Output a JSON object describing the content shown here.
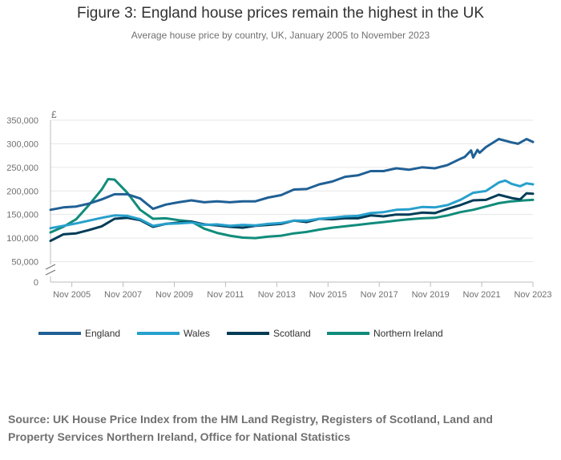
{
  "header": {
    "title": "Figure 3: England house prices remain the highest in the UK",
    "subtitle": "Average house price by country, UK, January 2005 to November 2023"
  },
  "footer": {
    "source": "Source: UK House Price Index from the HM Land Registry, Registers of Scotland, Land and Property Services Northern Ireland, Office for National Statistics"
  },
  "chart_data": {
    "type": "line",
    "y_unit_label": "£",
    "ylim": [
      0,
      350000
    ],
    "y_ticks": [
      {
        "value": 0,
        "label": "0"
      },
      {
        "value": 50000,
        "label": "50,000"
      },
      {
        "value": 100000,
        "label": "100,000"
      },
      {
        "value": 150000,
        "label": "150,000"
      },
      {
        "value": 200000,
        "label": "200,000"
      },
      {
        "value": 250000,
        "label": "250,000"
      },
      {
        "value": 300000,
        "label": "300,000"
      },
      {
        "value": 350000,
        "label": "350,000"
      }
    ],
    "y_axis_break": true,
    "xlim": [
      "2005-01",
      "2023-11"
    ],
    "x_ticks": [
      "Nov 2005",
      "Nov 2007",
      "Nov 2009",
      "Nov 2011",
      "Nov 2013",
      "Nov 2015",
      "Nov 2017",
      "Nov 2019",
      "Nov 2021",
      "Nov 2023"
    ],
    "grid": true,
    "legend_position": "bottom",
    "series": [
      {
        "name": "England",
        "color": "#206095",
        "points": [
          [
            "2005-01",
            160000
          ],
          [
            "2005-07",
            165000
          ],
          [
            "2006-01",
            167000
          ],
          [
            "2006-07",
            173000
          ],
          [
            "2007-01",
            182000
          ],
          [
            "2007-07",
            193000
          ],
          [
            "2008-01",
            193000
          ],
          [
            "2008-07",
            184000
          ],
          [
            "2009-01",
            162000
          ],
          [
            "2009-07",
            171000
          ],
          [
            "2010-01",
            176000
          ],
          [
            "2010-07",
            180000
          ],
          [
            "2011-01",
            176000
          ],
          [
            "2011-07",
            178000
          ],
          [
            "2012-01",
            176000
          ],
          [
            "2012-07",
            178000
          ],
          [
            "2013-01",
            178000
          ],
          [
            "2013-07",
            186000
          ],
          [
            "2014-01",
            191000
          ],
          [
            "2014-07",
            203000
          ],
          [
            "2015-01",
            204000
          ],
          [
            "2015-07",
            214000
          ],
          [
            "2016-01",
            220000
          ],
          [
            "2016-07",
            230000
          ],
          [
            "2017-01",
            233000
          ],
          [
            "2017-07",
            242000
          ],
          [
            "2018-01",
            242000
          ],
          [
            "2018-07",
            248000
          ],
          [
            "2019-01",
            245000
          ],
          [
            "2019-07",
            250000
          ],
          [
            "2020-01",
            248000
          ],
          [
            "2020-07",
            255000
          ],
          [
            "2021-01",
            268000
          ],
          [
            "2021-03",
            272000
          ],
          [
            "2021-06",
            286000
          ],
          [
            "2021-07",
            271000
          ],
          [
            "2021-09",
            287000
          ],
          [
            "2021-10",
            281000
          ],
          [
            "2022-01",
            293000
          ],
          [
            "2022-07",
            310000
          ],
          [
            "2023-01",
            303000
          ],
          [
            "2023-04",
            300000
          ],
          [
            "2023-08",
            310000
          ],
          [
            "2023-11",
            304000
          ]
        ]
      },
      {
        "name": "Wales",
        "color": "#27a0cc",
        "points": [
          [
            "2005-01",
            121000
          ],
          [
            "2005-07",
            126000
          ],
          [
            "2006-01",
            131000
          ],
          [
            "2006-07",
            137000
          ],
          [
            "2007-01",
            143000
          ],
          [
            "2007-07",
            148000
          ],
          [
            "2008-01",
            147000
          ],
          [
            "2008-07",
            140000
          ],
          [
            "2009-01",
            126000
          ],
          [
            "2009-07",
            130000
          ],
          [
            "2010-01",
            131000
          ],
          [
            "2010-07",
            133000
          ],
          [
            "2011-01",
            128000
          ],
          [
            "2011-07",
            129000
          ],
          [
            "2012-01",
            126000
          ],
          [
            "2012-07",
            128000
          ],
          [
            "2013-01",
            127000
          ],
          [
            "2013-07",
            130000
          ],
          [
            "2014-01",
            132000
          ],
          [
            "2014-07",
            137000
          ],
          [
            "2015-01",
            137000
          ],
          [
            "2015-07",
            141000
          ],
          [
            "2016-01",
            143000
          ],
          [
            "2016-07",
            146000
          ],
          [
            "2017-01",
            147000
          ],
          [
            "2017-07",
            153000
          ],
          [
            "2018-01",
            155000
          ],
          [
            "2018-07",
            160000
          ],
          [
            "2019-01",
            161000
          ],
          [
            "2019-07",
            166000
          ],
          [
            "2020-01",
            165000
          ],
          [
            "2020-07",
            170000
          ],
          [
            "2021-01",
            181000
          ],
          [
            "2021-07",
            196000
          ],
          [
            "2022-01",
            200000
          ],
          [
            "2022-07",
            218000
          ],
          [
            "2022-10",
            222000
          ],
          [
            "2023-01",
            215000
          ],
          [
            "2023-05",
            210000
          ],
          [
            "2023-08",
            216000
          ],
          [
            "2023-11",
            214000
          ]
        ]
      },
      {
        "name": "Scotland",
        "color": "#003c57",
        "points": [
          [
            "2005-01",
            94000
          ],
          [
            "2005-07",
            108000
          ],
          [
            "2006-01",
            110000
          ],
          [
            "2006-07",
            117000
          ],
          [
            "2007-01",
            125000
          ],
          [
            "2007-07",
            141000
          ],
          [
            "2008-01",
            143000
          ],
          [
            "2008-07",
            138000
          ],
          [
            "2009-01",
            124000
          ],
          [
            "2009-07",
            130000
          ],
          [
            "2010-01",
            133000
          ],
          [
            "2010-07",
            135000
          ],
          [
            "2011-01",
            129000
          ],
          [
            "2011-07",
            127000
          ],
          [
            "2012-01",
            124000
          ],
          [
            "2012-07",
            122000
          ],
          [
            "2013-01",
            126000
          ],
          [
            "2013-07",
            128000
          ],
          [
            "2014-01",
            130000
          ],
          [
            "2014-07",
            137000
          ],
          [
            "2015-01",
            134000
          ],
          [
            "2015-07",
            141000
          ],
          [
            "2016-01",
            140000
          ],
          [
            "2016-07",
            142000
          ],
          [
            "2017-01",
            142000
          ],
          [
            "2017-07",
            148000
          ],
          [
            "2018-01",
            146000
          ],
          [
            "2018-07",
            150000
          ],
          [
            "2019-01",
            150000
          ],
          [
            "2019-07",
            154000
          ],
          [
            "2020-01",
            153000
          ],
          [
            "2020-07",
            162000
          ],
          [
            "2021-01",
            170000
          ],
          [
            "2021-07",
            180000
          ],
          [
            "2022-01",
            181000
          ],
          [
            "2022-07",
            192000
          ],
          [
            "2023-01",
            185000
          ],
          [
            "2023-05",
            182000
          ],
          [
            "2023-08",
            195000
          ],
          [
            "2023-11",
            194000
          ]
        ]
      },
      {
        "name": "Northern Ireland",
        "color": "#118c7b",
        "points": [
          [
            "2005-01",
            112000
          ],
          [
            "2005-07",
            124000
          ],
          [
            "2006-01",
            140000
          ],
          [
            "2006-07",
            170000
          ],
          [
            "2007-01",
            203000
          ],
          [
            "2007-04",
            225000
          ],
          [
            "2007-07",
            224000
          ],
          [
            "2008-01",
            196000
          ],
          [
            "2008-07",
            160000
          ],
          [
            "2009-01",
            141000
          ],
          [
            "2009-07",
            142000
          ],
          [
            "2010-01",
            138000
          ],
          [
            "2010-07",
            135000
          ],
          [
            "2011-01",
            120000
          ],
          [
            "2011-07",
            111000
          ],
          [
            "2012-01",
            105000
          ],
          [
            "2012-07",
            101000
          ],
          [
            "2013-01",
            100000
          ],
          [
            "2013-07",
            103000
          ],
          [
            "2014-01",
            105000
          ],
          [
            "2014-07",
            110000
          ],
          [
            "2015-01",
            113000
          ],
          [
            "2015-07",
            118000
          ],
          [
            "2016-01",
            122000
          ],
          [
            "2016-07",
            125000
          ],
          [
            "2017-01",
            128000
          ],
          [
            "2017-07",
            131000
          ],
          [
            "2018-01",
            134000
          ],
          [
            "2018-07",
            137000
          ],
          [
            "2019-01",
            140000
          ],
          [
            "2019-07",
            142000
          ],
          [
            "2020-01",
            143000
          ],
          [
            "2020-07",
            148000
          ],
          [
            "2021-01",
            155000
          ],
          [
            "2021-07",
            160000
          ],
          [
            "2022-01",
            167000
          ],
          [
            "2022-07",
            174000
          ],
          [
            "2023-01",
            178000
          ],
          [
            "2023-07",
            180000
          ],
          [
            "2023-11",
            181000
          ]
        ]
      }
    ]
  }
}
